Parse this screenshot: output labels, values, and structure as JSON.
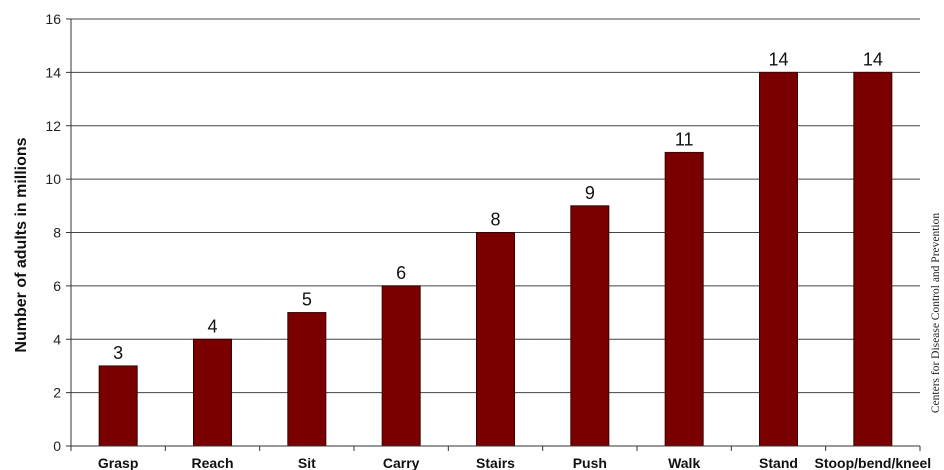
{
  "chart_data": {
    "type": "bar",
    "title": "",
    "xlabel": "",
    "ylabel": "Number of adults in millions",
    "ylim": [
      0,
      16
    ],
    "yticks": [
      0,
      2,
      4,
      6,
      8,
      10,
      12,
      14,
      16
    ],
    "grid": true,
    "categories": [
      "Grasp",
      "Reach",
      "Sit",
      "Carry",
      "Stairs",
      "Push",
      "Walk",
      "Stand",
      "Stoop/bend/kneel"
    ],
    "values": [
      3,
      4,
      5,
      6,
      8,
      9,
      11,
      14,
      14
    ],
    "data_labels": [
      "3",
      "4",
      "5",
      "6",
      "8",
      "9",
      "11",
      "14",
      "14"
    ],
    "bar_color": "#7a0000"
  },
  "credit": "Centers for Disease Control and Prevention"
}
